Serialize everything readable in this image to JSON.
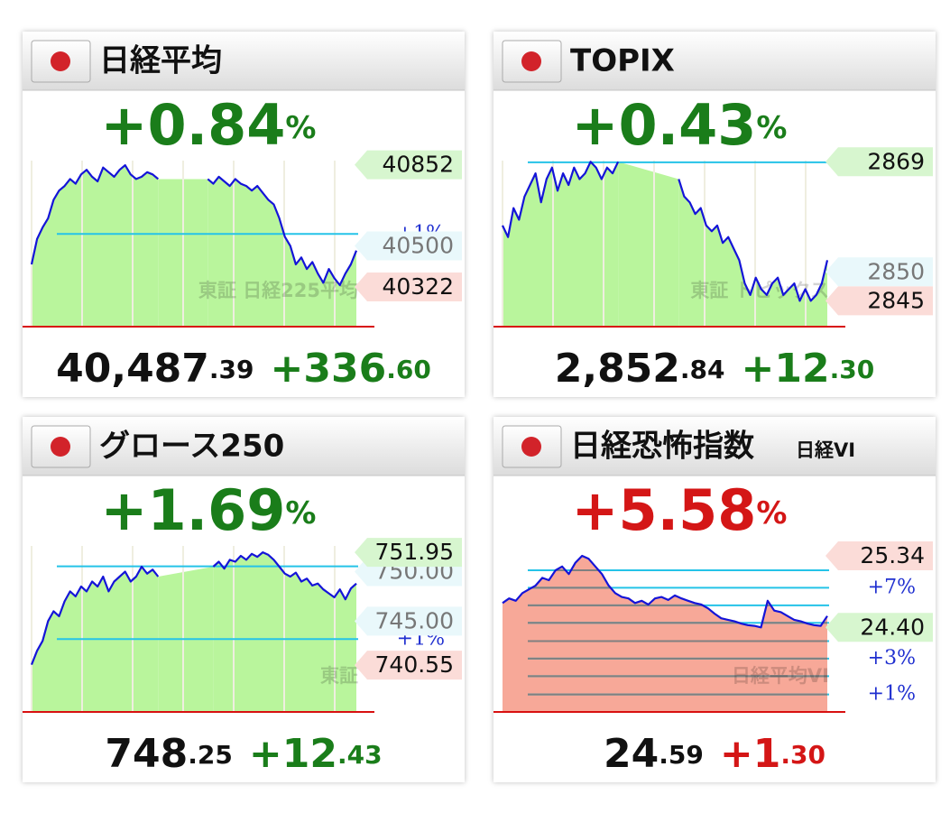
{
  "chart_data": [
    {
      "type": "line",
      "title": "日経平均",
      "watermark": "東証 日経225平均",
      "change_percent": {
        "number": "+0.84",
        "unit": "%"
      },
      "price": {
        "integer": "40,487",
        "decimal": ".39"
      },
      "change": {
        "integer": "+336",
        "decimal": ".60"
      },
      "change_color": "#1a7d1a",
      "color": "#1414d8",
      "area_color": "#b9f59c",
      "vgrid": true,
      "ylim": [
        40150,
        40870
      ],
      "values": [
        40420,
        40530,
        40580,
        40620,
        40700,
        40740,
        40760,
        40790,
        40770,
        40810,
        40830,
        40800,
        40780,
        40840,
        40820,
        40800,
        40830,
        40850,
        40810,
        40790,
        40800,
        40820,
        40810,
        40790,
        null,
        null,
        null,
        null,
        null,
        null,
        null,
        null,
        40790,
        40770,
        40800,
        40780,
        40760,
        40790,
        40770,
        40760,
        40740,
        40760,
        40730,
        40700,
        40680,
        40620,
        40540,
        40500,
        40420,
        40450,
        40400,
        40430,
        40380,
        40340,
        40400,
        40360,
        40330,
        40380,
        40420,
        40480
      ],
      "levels": [
        {
          "value": 40552,
          "label": "+1%",
          "style": "pct"
        },
        {
          "value": 40500,
          "label": "40500",
          "style": "round"
        },
        {
          "value": 40852,
          "label": "40852",
          "style": "green"
        },
        {
          "value": 40322,
          "label": "40322",
          "style": "pink"
        }
      ]
    },
    {
      "type": "line",
      "title": "TOPIX",
      "watermark": "東証 トピックス",
      "change_percent": {
        "number": "+0.43",
        "unit": "%"
      },
      "price": {
        "integer": "2,852",
        "decimal": ".84"
      },
      "change": {
        "integer": "+12",
        "decimal": ".30"
      },
      "change_color": "#1a7d1a",
      "color": "#1414d8",
      "area_color": "#b9f59c",
      "vgrid": true,
      "ylim": [
        2840.54,
        2869.2
      ],
      "values": [
        2858,
        2856,
        2861,
        2859,
        2863,
        2865,
        2867,
        2862,
        2866,
        2868,
        2864,
        2867,
        2865,
        2868,
        2866,
        2867,
        2869,
        2868,
        2866,
        2868,
        2867,
        2869,
        null,
        null,
        null,
        null,
        null,
        null,
        null,
        null,
        null,
        null,
        2866,
        2863,
        2862,
        2860,
        2861,
        2858,
        2857,
        2858,
        2855,
        2856,
        2854,
        2852,
        2848,
        2846,
        2849,
        2847,
        2846,
        2848,
        2849,
        2846,
        2847,
        2848,
        2845,
        2847,
        2845,
        2846,
        2848,
        2852
      ],
      "levels": [
        {
          "value": 2868.9,
          "style": "pct"
        },
        {
          "value": 2850,
          "label": "2850",
          "style": "round"
        },
        {
          "value": 2869,
          "label": "2869",
          "style": "green"
        },
        {
          "value": 2845,
          "label": "2845",
          "style": "pink"
        }
      ]
    },
    {
      "type": "line",
      "title": "グロース250",
      "watermark": "東証",
      "change_percent": {
        "number": "+1.69",
        "unit": "%"
      },
      "price": {
        "integer": "748",
        "decimal": ".25"
      },
      "change": {
        "integer": "+12",
        "decimal": ".43"
      },
      "change_color": "#1a7d1a",
      "color": "#1414d8",
      "area_color": "#b9f59c",
      "vgrid": true,
      "ylim": [
        735.82,
        752.6
      ],
      "values": [
        740.6,
        742,
        743,
        745,
        746,
        745.5,
        747,
        748,
        747.5,
        748.5,
        748,
        749,
        748.5,
        749.5,
        748,
        749,
        749.5,
        750,
        749,
        749.5,
        750.5,
        749.8,
        750.2,
        749.5,
        null,
        null,
        null,
        null,
        null,
        null,
        null,
        null,
        null,
        750.5,
        751,
        750.3,
        751.2,
        751,
        751.6,
        751.2,
        751.8,
        751.5,
        751.95,
        751.7,
        751.2,
        750.5,
        749.8,
        749.5,
        749.9,
        749,
        749.3,
        748.6,
        748.8,
        748.2,
        747.8,
        747.4,
        748.2,
        747.2,
        748.3,
        748.8
      ],
      "levels": [
        {
          "value": 743.18,
          "label": "+1%",
          "style": "pct"
        },
        {
          "value": 750.54,
          "style": "pct"
        },
        {
          "value": 745,
          "label": "745.00",
          "style": "round"
        },
        {
          "value": 750,
          "label": "750.00",
          "style": "round"
        },
        {
          "value": 751.95,
          "label": "751.95",
          "style": "green"
        },
        {
          "value": 740.55,
          "label": "740.55",
          "style": "pink"
        }
      ]
    },
    {
      "type": "line",
      "title": "日経恐怖指数",
      "subtitle": "日経VI",
      "watermark": "日経平均VI",
      "change_percent": {
        "number": "+5.58",
        "unit": "%"
      },
      "price": {
        "integer": "24",
        "decimal": ".59"
      },
      "change": {
        "integer": "+1",
        "decimal": ".30"
      },
      "change_color": "#d41616",
      "color": "#1414d8",
      "area_color": "#f7a898",
      "area_line_color": "#808080",
      "vgrid": false,
      "ylim": [
        23.29,
        25.47
      ],
      "values": [
        24.72,
        24.78,
        24.75,
        24.85,
        24.9,
        24.95,
        25.05,
        25.02,
        25.15,
        25.2,
        25.1,
        25.25,
        25.34,
        25.3,
        25.2,
        25.1,
        24.95,
        24.85,
        24.8,
        24.78,
        24.72,
        24.75,
        24.7,
        24.78,
        24.8,
        24.76,
        24.82,
        24.78,
        24.75,
        24.72,
        24.7,
        24.65,
        24.58,
        24.52,
        24.5,
        24.48,
        24.45,
        24.43,
        24.42,
        24.4,
        24.75,
        24.62,
        24.6,
        24.55,
        24.5,
        24.48,
        24.45,
        24.43,
        24.42,
        24.55
      ],
      "levels": [
        {
          "value": 23.52,
          "label": "+1%",
          "style": "pct"
        },
        {
          "value": 23.76,
          "style": "pct"
        },
        {
          "value": 23.99,
          "label": "+3%",
          "style": "pct"
        },
        {
          "value": 24.22,
          "style": "pct"
        },
        {
          "value": 24.46,
          "style": "pct"
        },
        {
          "value": 24.69,
          "style": "pct"
        },
        {
          "value": 24.92,
          "label": "+7%",
          "style": "pct"
        },
        {
          "value": 25.15,
          "style": "pct"
        },
        {
          "value": 24.4,
          "label": "24.40",
          "style": "green"
        },
        {
          "value": 25.34,
          "label": "25.34",
          "style": "pink"
        }
      ]
    }
  ]
}
